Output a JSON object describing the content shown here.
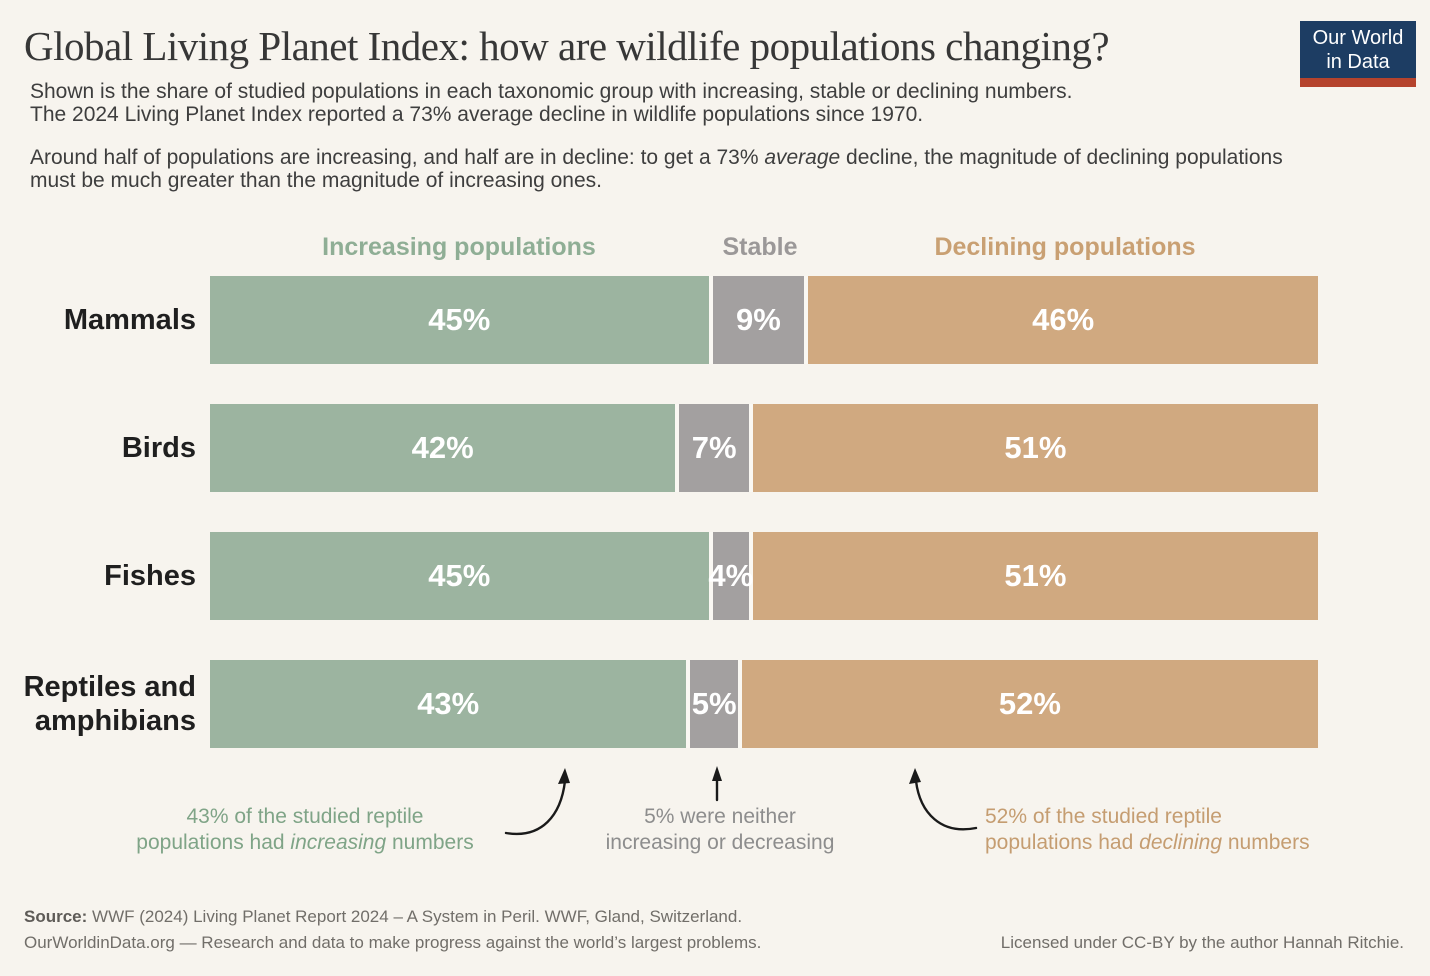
{
  "palette": {
    "background": "#f7f4ee",
    "increasing": "#9cb4a0",
    "stable": "#a3a0a0",
    "declining": "#d0a980",
    "logo_navy": "#1d3d63",
    "logo_red": "#b5432d",
    "title_text": "#373737",
    "annotation_green": "#7fa487",
    "annotation_gray": "#8d8d8d",
    "annotation_tan": "#c59d71"
  },
  "header": {
    "title": "Global Living Planet Index: how are wildlife populations changing?",
    "logo_line1": "Our World",
    "logo_line2": "in Data",
    "subtitle_line1": "Shown is the share of studied populations in each taxonomic group with increasing, stable or declining numbers.",
    "subtitle_line2": "The 2024 Living Planet Index reported a 73% average decline in wildlife populations since 1970.",
    "note_pre": "Around half of populations are increasing, and half are in decline: to get a 73% ",
    "note_italic": "average",
    "note_post": " decline, the magnitude of declining populations must be much greater than the magnitude of increasing ones."
  },
  "columns": [
    {
      "label": "Increasing populations"
    },
    {
      "label": "Stable"
    },
    {
      "label": "Declining populations"
    }
  ],
  "rows": [
    {
      "label": "Mammals",
      "segments": [
        {
          "pct": 45,
          "text": "45%"
        },
        {
          "pct": 9,
          "text": "9%"
        },
        {
          "pct": 46,
          "text": "46%"
        }
      ]
    },
    {
      "label": "Birds",
      "segments": [
        {
          "pct": 42,
          "text": "42%"
        },
        {
          "pct": 7,
          "text": "7%"
        },
        {
          "pct": 51,
          "text": "51%"
        }
      ]
    },
    {
      "label": "Fishes",
      "segments": [
        {
          "pct": 45,
          "text": "45%"
        },
        {
          "pct": 4,
          "text": "4%"
        },
        {
          "pct": 51,
          "text": "51%"
        }
      ]
    },
    {
      "label": "Reptiles and amphibians",
      "segments": [
        {
          "pct": 43,
          "text": "43%"
        },
        {
          "pct": 5,
          "text": "5%"
        },
        {
          "pct": 52,
          "text": "52%"
        }
      ]
    }
  ],
  "annotations": {
    "green_line1": "43% of the studied reptile",
    "green_line2_pre": "populations had ",
    "green_line2_italic": "increasing",
    "green_line2_post": " numbers",
    "gray_line1": "5% were neither",
    "gray_line2": "increasing or decreasing",
    "tan_line1": "52% of the studied reptile",
    "tan_line2_pre": "populations had ",
    "tan_line2_italic": "declining",
    "tan_line2_post": " numbers"
  },
  "footer": {
    "source_label": "Source:",
    "source_text": " WWF (2024) Living Planet Report 2024 – A System in Peril. WWF, Gland, Switzerland.",
    "owid_line": "OurWorldinData.org — Research and data to make progress against the world’s largest problems.",
    "license_line": "Licensed under CC-BY by the author Hannah Ritchie."
  },
  "chart_data": {
    "type": "bar",
    "orientation": "horizontal-stacked",
    "title": "Global Living Planet Index: how are wildlife populations changing?",
    "categories": [
      "Mammals",
      "Birds",
      "Fishes",
      "Reptiles and amphibians"
    ],
    "series": [
      {
        "name": "Increasing populations",
        "color": "#9cb4a0",
        "values": [
          45,
          42,
          45,
          43
        ]
      },
      {
        "name": "Stable",
        "color": "#a3a0a0",
        "values": [
          9,
          7,
          4,
          5
        ]
      },
      {
        "name": "Declining populations",
        "color": "#d0a980",
        "values": [
          46,
          51,
          51,
          52
        ]
      }
    ],
    "unit": "%",
    "xlim": [
      0,
      100
    ],
    "grid": false,
    "legend_position": "top"
  }
}
